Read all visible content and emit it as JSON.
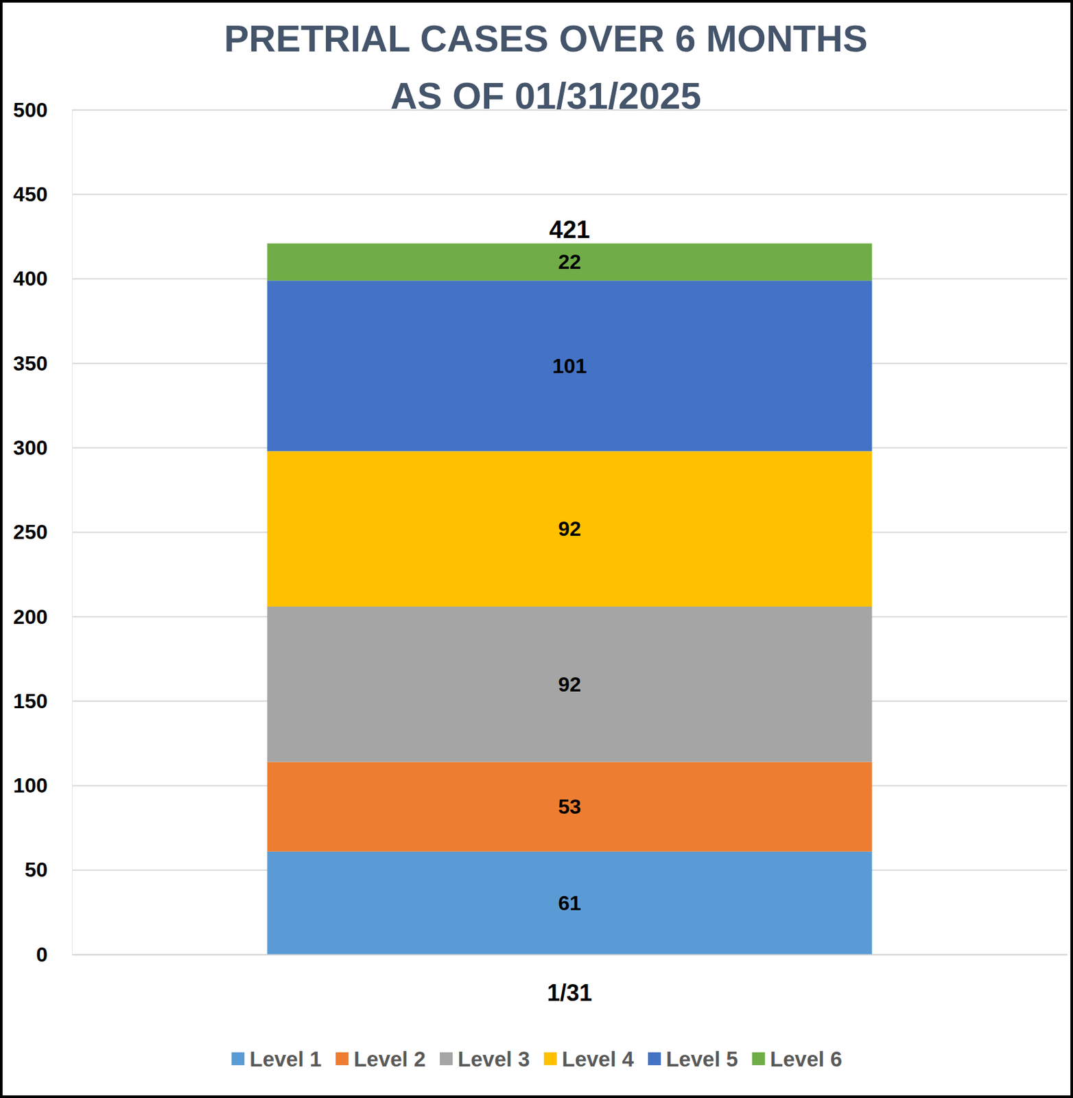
{
  "chart_data": {
    "type": "bar",
    "stacked": true,
    "data_labels": true,
    "grid": true,
    "legend": "bottom",
    "title": "PRETRIAL CASES OVER 6 MONTHS",
    "subtitle": "AS OF 01/31/2025",
    "categories": [
      "1/31"
    ],
    "series": [
      {
        "name": "Level 1",
        "color": "#5b9bd5",
        "values": [
          61
        ]
      },
      {
        "name": "Level 2",
        "color": "#ed7d31",
        "values": [
          53
        ]
      },
      {
        "name": "Level 3",
        "color": "#a5a5a5",
        "values": [
          92
        ]
      },
      {
        "name": "Level 4",
        "color": "#ffc000",
        "values": [
          92
        ]
      },
      {
        "name": "Level 5",
        "color": "#4472c4",
        "values": [
          101
        ]
      },
      {
        "name": "Level 6",
        "color": "#70ad47",
        "values": [
          22
        ]
      }
    ],
    "totals": [
      421
    ],
    "ylim": [
      0,
      500
    ],
    "yticks": [
      0,
      50,
      100,
      150,
      200,
      250,
      300,
      350,
      400,
      450,
      500
    ]
  }
}
